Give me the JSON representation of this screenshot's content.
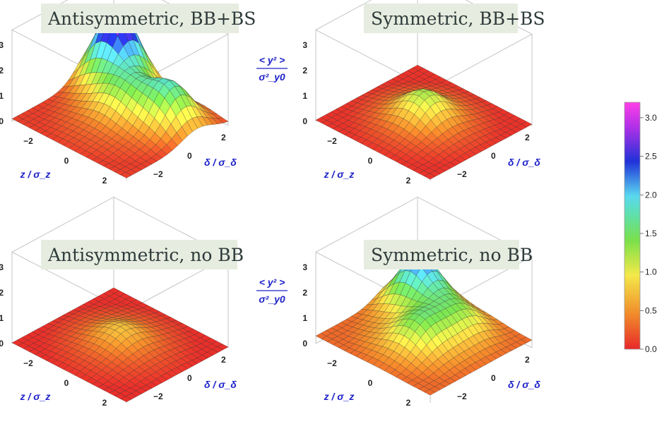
{
  "chart_data": [
    {
      "type": "surface3d",
      "title": "Antisymmetric, BB+BS",
      "xlabel": "z / σ_z",
      "ylabel": "δ / σ_δ",
      "zlabel": "< y² > / σ²_y0",
      "x_ticks": [
        "−2",
        "0",
        "2"
      ],
      "y_ticks": [
        "2",
        "0",
        "−2"
      ],
      "z_ticks": [
        "0",
        "1",
        "2",
        "3"
      ],
      "xlim": [
        -3,
        3
      ],
      "ylim": [
        -3,
        3
      ],
      "zlim": [
        0,
        3
      ],
      "features": [
        {
          "x": -1.8,
          "y": 1.8,
          "height": 3.1
        },
        {
          "x": 1.6,
          "y": 1.2,
          "height": 1.6
        },
        {
          "x": -0.2,
          "y": 0.4,
          "height": 1.2
        }
      ],
      "edge_height": 0.1
    },
    {
      "type": "surface3d",
      "title": "Symmetric, BB+BS",
      "xlabel": "z / σ_z",
      "ylabel": "δ / σ_δ",
      "zlabel": "< y² > / σ²_y0",
      "x_ticks": [
        "−2",
        "0",
        "2"
      ],
      "y_ticks": [
        "2",
        "0",
        "−2"
      ],
      "z_ticks": [
        "0",
        "1",
        "2",
        "3"
      ],
      "xlim": [
        -3,
        3
      ],
      "ylim": [
        -3,
        3
      ],
      "zlim": [
        0,
        3
      ],
      "features": [
        {
          "x": 0.0,
          "y": 0.0,
          "height": 1.1
        }
      ],
      "edge_height": 0.05
    },
    {
      "type": "surface3d",
      "title": "Antisymmetric, no BB",
      "xlabel": "z / σ_z",
      "ylabel": "δ / σ_δ",
      "zlabel": "< y² > / σ²_y0",
      "x_ticks": [
        "−2",
        "0",
        "2"
      ],
      "y_ticks": [
        "2",
        "0",
        "−2"
      ],
      "z_ticks": [
        "0",
        "1",
        "2",
        "3"
      ],
      "xlim": [
        -3,
        3
      ],
      "ylim": [
        -3,
        3
      ],
      "zlim": [
        0,
        3
      ],
      "features": [
        {
          "x": 0.0,
          "y": 0.0,
          "height": 0.6
        }
      ],
      "edge_height": 0.03
    },
    {
      "type": "surface3d",
      "title": "Symmetric, no BB",
      "xlabel": "z / σ_z",
      "ylabel": "δ / σ_δ",
      "zlabel": "< y² > / σ²_y0",
      "x_ticks": [
        "−2",
        "0",
        "2"
      ],
      "y_ticks": [
        "2",
        "0",
        "−2"
      ],
      "z_ticks": [
        "0",
        "1",
        "2",
        "3"
      ],
      "xlim": [
        -3,
        3
      ],
      "ylim": [
        -3,
        3
      ],
      "zlim": [
        0,
        3
      ],
      "features": [
        {
          "x": -1.6,
          "y": 1.5,
          "height": 2.2
        },
        {
          "x": 0.3,
          "y": -0.6,
          "height": 1.3
        },
        {
          "x": 0.6,
          "y": 1.3,
          "height": 1.1
        }
      ],
      "edge_height": 0.3
    }
  ],
  "colorbar": {
    "ticks": [
      "0.0",
      "0.5",
      "1.0",
      "1.5",
      "2.0",
      "2.5",
      "3.0"
    ],
    "range": [
      0,
      3.2
    ],
    "colors": [
      "#e8282a",
      "#f08a2a",
      "#f4e94a",
      "#6ee04a",
      "#5ad8f0",
      "#2032d8",
      "#e038f0"
    ]
  }
}
